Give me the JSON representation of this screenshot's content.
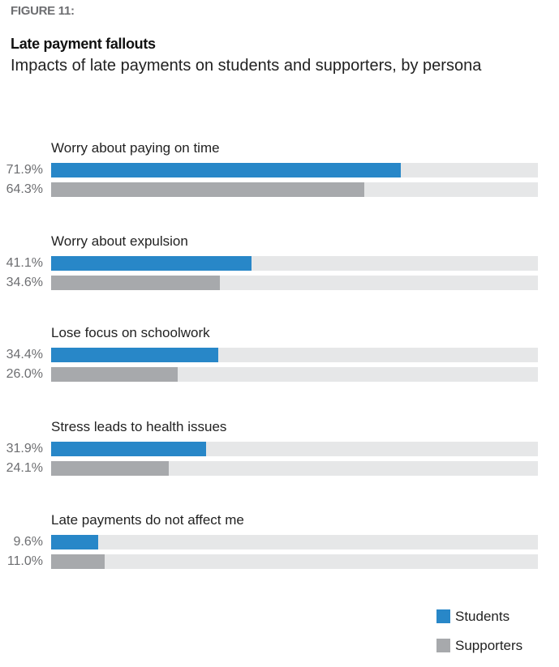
{
  "header": {
    "figure_label": "FIGURE 11:",
    "title": "Late payment fallouts",
    "subtitle": "Impacts of late payments on students and supporters, by persona"
  },
  "groups": [
    {
      "label": "Worry about paying on time",
      "students": {
        "value": 71.9,
        "text": "71.9%"
      },
      "supporters": {
        "value": 64.3,
        "text": "64.3%"
      }
    },
    {
      "label": "Worry about expulsion",
      "students": {
        "value": 41.1,
        "text": "41.1%"
      },
      "supporters": {
        "value": 34.6,
        "text": "34.6%"
      }
    },
    {
      "label": "Lose focus on schoolwork",
      "students": {
        "value": 34.4,
        "text": "34.4%"
      },
      "supporters": {
        "value": 26.0,
        "text": "26.0%"
      }
    },
    {
      "label": "Stress leads to health issues",
      "students": {
        "value": 31.9,
        "text": "31.9%"
      },
      "supporters": {
        "value": 24.1,
        "text": "24.1%"
      }
    },
    {
      "label": "Late payments do not affect me",
      "students": {
        "value": 9.6,
        "text": "9.6%"
      },
      "supporters": {
        "value": 11.0,
        "text": "11.0%"
      }
    }
  ],
  "legend": [
    {
      "label": "Students",
      "color": "#2887c8"
    },
    {
      "label": "Supporters",
      "color": "#a7a9ac"
    }
  ],
  "colors": {
    "students": "#2887c8",
    "supporters": "#a7a9ac",
    "track": "#e6e7e8"
  },
  "chart_data": {
    "type": "bar",
    "orientation": "horizontal",
    "title": "Late payment fallouts",
    "subtitle": "Impacts of late payments on students and supporters, by persona",
    "categories": [
      "Worry about paying on time",
      "Worry about expulsion",
      "Lose focus on schoolwork",
      "Stress leads to health issues",
      "Late payments do not affect me"
    ],
    "series": [
      {
        "name": "Students",
        "color": "#2887c8",
        "values": [
          71.9,
          41.1,
          34.4,
          31.9,
          9.6
        ]
      },
      {
        "name": "Supporters",
        "color": "#a7a9ac",
        "values": [
          64.3,
          34.6,
          26.0,
          24.1,
          11.0
        ]
      }
    ],
    "xlabel": "",
    "ylabel": "",
    "xlim": [
      0,
      100
    ],
    "unit": "%",
    "grid": false,
    "legend_position": "bottom-right"
  }
}
